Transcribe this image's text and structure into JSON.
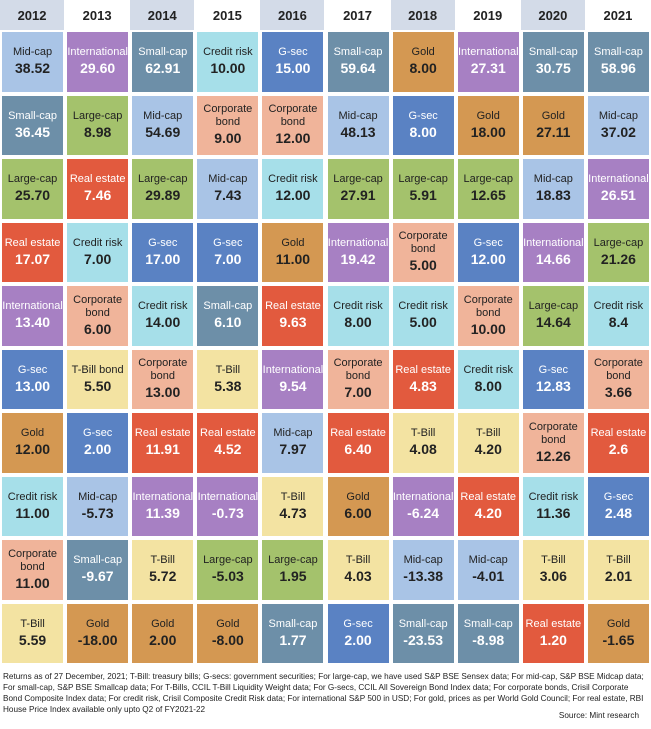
{
  "colors": {
    "Mid-cap": "#a9c4e6",
    "International": "#a780c3",
    "Small-cap": "#6d8fa8",
    "Credit risk": "#a6dfe9",
    "G-sec": "#5a82c3",
    "Gold": "#d49852",
    "Large-cap": "#a4c26c",
    "Real estate": "#e25a3e",
    "Corporate bond": "#f0b49a",
    "T-Bill": "#f3e3a2",
    "header": "#d3dbe8",
    "header_alt": "#ffffff"
  },
  "light_text": [
    "International",
    "Small-cap",
    "G-sec",
    "Real estate"
  ],
  "chart_data": {
    "type": "table",
    "columns": [
      "2012",
      "2013",
      "2014",
      "2015",
      "2016",
      "2017",
      "2018",
      "2019",
      "2020",
      "2021"
    ],
    "rows": [
      [
        {
          "asset": "Mid-cap",
          "value": "38.52"
        },
        {
          "asset": "International",
          "value": "29.60"
        },
        {
          "asset": "Small-cap",
          "value": "62.91"
        },
        {
          "asset": "Credit risk",
          "value": "10.00"
        },
        {
          "asset": "G-sec",
          "value": "15.00"
        },
        {
          "asset": "Small-cap",
          "value": "59.64"
        },
        {
          "asset": "Gold",
          "value": "8.00"
        },
        {
          "asset": "International",
          "value": "27.31"
        },
        {
          "asset": "Small-cap",
          "value": "30.75"
        },
        {
          "asset": "Small-cap",
          "value": "58.96"
        }
      ],
      [
        {
          "asset": "Small-cap",
          "value": "36.45"
        },
        {
          "asset": "Large-cap",
          "value": "8.98"
        },
        {
          "asset": "Mid-cap",
          "value": "54.69"
        },
        {
          "asset": "Corporate bond",
          "value": "9.00"
        },
        {
          "asset": "Corporate bond",
          "value": "12.00"
        },
        {
          "asset": "Mid-cap",
          "value": "48.13"
        },
        {
          "asset": "G-sec",
          "value": "8.00"
        },
        {
          "asset": "Gold",
          "value": "18.00"
        },
        {
          "asset": "Gold",
          "value": "27.11"
        },
        {
          "asset": "Mid-cap",
          "value": "37.02"
        }
      ],
      [
        {
          "asset": "Large-cap",
          "value": "25.70"
        },
        {
          "asset": "Real estate",
          "value": "7.46"
        },
        {
          "asset": "Large-cap",
          "value": "29.89"
        },
        {
          "asset": "Mid-cap",
          "value": "7.43"
        },
        {
          "asset": "Credit risk",
          "value": "12.00"
        },
        {
          "asset": "Large-cap",
          "value": "27.91"
        },
        {
          "asset": "Large-cap",
          "value": "5.91"
        },
        {
          "asset": "Large-cap",
          "value": "12.65"
        },
        {
          "asset": "Mid-cap",
          "value": "18.83"
        },
        {
          "asset": "International",
          "value": "26.51"
        }
      ],
      [
        {
          "asset": "Real estate",
          "value": "17.07"
        },
        {
          "asset": "Credit risk",
          "value": "7.00"
        },
        {
          "asset": "G-sec",
          "value": "17.00"
        },
        {
          "asset": "G-sec",
          "value": "7.00"
        },
        {
          "asset": "Gold",
          "value": "11.00"
        },
        {
          "asset": "International",
          "value": "19.42"
        },
        {
          "asset": "Corporate bond",
          "value": "5.00"
        },
        {
          "asset": "G-sec",
          "value": "12.00"
        },
        {
          "asset": "International",
          "value": "14.66"
        },
        {
          "asset": "Large-cap",
          "value": "21.26"
        }
      ],
      [
        {
          "asset": "International",
          "value": "13.40"
        },
        {
          "asset": "Corporate bond",
          "value": "6.00"
        },
        {
          "asset": "Credit risk",
          "value": "14.00"
        },
        {
          "asset": "Small-cap",
          "value": "6.10"
        },
        {
          "asset": "Real estate",
          "value": "9.63"
        },
        {
          "asset": "Credit risk",
          "value": "8.00"
        },
        {
          "asset": "Credit risk",
          "value": "5.00"
        },
        {
          "asset": "Corporate bond",
          "value": "10.00"
        },
        {
          "asset": "Large-cap",
          "value": "14.64"
        },
        {
          "asset": "Credit risk",
          "value": "8.4"
        }
      ],
      [
        {
          "asset": "G-sec",
          "value": "13.00"
        },
        {
          "asset": "T-Bill bond",
          "value": "5.50"
        },
        {
          "asset": "Corporate bond",
          "value": "13.00"
        },
        {
          "asset": "T-Bill",
          "value": "5.38"
        },
        {
          "asset": "International",
          "value": "9.54"
        },
        {
          "asset": "Corporate bond",
          "value": "7.00"
        },
        {
          "asset": "Real estate",
          "value": "4.83"
        },
        {
          "asset": "Credit risk",
          "value": "8.00"
        },
        {
          "asset": "G-sec",
          "value": "12.83"
        },
        {
          "asset": "Corporate bond",
          "value": "3.66"
        }
      ],
      [
        {
          "asset": "Gold",
          "value": "12.00"
        },
        {
          "asset": "G-sec",
          "value": "2.00"
        },
        {
          "asset": "Real estate",
          "value": "11.91"
        },
        {
          "asset": "Real estate",
          "value": "4.52"
        },
        {
          "asset": "Mid-cap",
          "value": "7.97"
        },
        {
          "asset": "Real estate",
          "value": "6.40"
        },
        {
          "asset": "T-Bill",
          "value": "4.08"
        },
        {
          "asset": "T-Bill",
          "value": "4.20"
        },
        {
          "asset": "Corporate bond",
          "value": "12.26"
        },
        {
          "asset": "Real estate",
          "value": "2.6"
        }
      ],
      [
        {
          "asset": "Credit risk",
          "value": "11.00"
        },
        {
          "asset": "Mid-cap",
          "value": "-5.73"
        },
        {
          "asset": "International",
          "value": "11.39"
        },
        {
          "asset": "International",
          "value": "-0.73"
        },
        {
          "asset": "T-Bill",
          "value": "4.73"
        },
        {
          "asset": "Gold",
          "value": "6.00"
        },
        {
          "asset": "International",
          "value": "-6.24"
        },
        {
          "asset": "Real estate",
          "value": "4.20"
        },
        {
          "asset": "Credit risk",
          "value": "11.36"
        },
        {
          "asset": "G-sec",
          "value": "2.48"
        }
      ],
      [
        {
          "asset": "Corporate bond",
          "value": "11.00"
        },
        {
          "asset": "Small-cap",
          "value": "-9.67"
        },
        {
          "asset": "T-Bill",
          "value": "5.72"
        },
        {
          "asset": "Large-cap",
          "value": "-5.03"
        },
        {
          "asset": "Large-cap",
          "value": "1.95"
        },
        {
          "asset": "T-Bill",
          "value": "4.03"
        },
        {
          "asset": "Mid-cap",
          "value": "-13.38"
        },
        {
          "asset": "Mid-cap",
          "value": "-4.01"
        },
        {
          "asset": "T-Bill",
          "value": "3.06"
        },
        {
          "asset": "T-Bill",
          "value": "2.01"
        }
      ],
      [
        {
          "asset": "T-Bill",
          "value": "5.59"
        },
        {
          "asset": "Gold",
          "value": "-18.00"
        },
        {
          "asset": "Gold",
          "value": "2.00"
        },
        {
          "asset": "Gold",
          "value": "-8.00"
        },
        {
          "asset": "Small-cap",
          "value": "1.77"
        },
        {
          "asset": "G-sec",
          "value": "2.00"
        },
        {
          "asset": "Small-cap",
          "value": "-23.53"
        },
        {
          "asset": "Small-cap",
          "value": "-8.98"
        },
        {
          "asset": "Real estate",
          "value": "1.20"
        },
        {
          "asset": "Gold",
          "value": "-1.65"
        }
      ]
    ]
  },
  "notes": "Returns as of 27 December, 2021; T-Bill: treasury bills; G-secs: government securities; For large-cap, we have used S&P BSE Sensex data; For mid-cap, S&P BSE Midcap data; For small-cap, S&P BSE Smallcap data; For T-Bills, CCIL T-Bill Liquidity Weight data; For G-secs, CCIL All Sovereign Bond Index data; For corporate bonds, Crisil Corporate Bond Composite Index data; For credit risk, Crisil Composite Credit Risk data; For international S&P 500 in USD; For gold, prices as per World Gold Council; For real estate, RBI House Price Index available only upto Q2 of FY2021-22",
  "source": "Source: Mint research"
}
